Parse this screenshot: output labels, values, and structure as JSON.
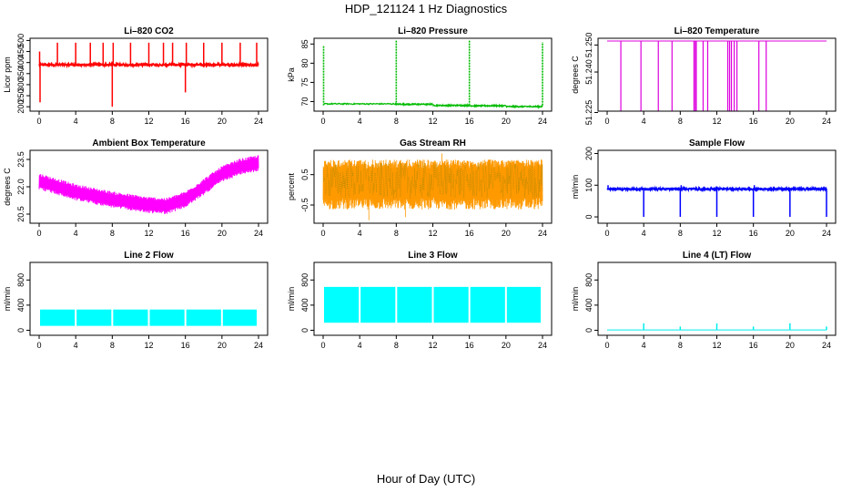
{
  "title": "HDP_121124  1 Hz Diagnostics",
  "xlabel": "Hour of Day (UTC)",
  "chart_data": [
    {
      "type": "line",
      "title": "Li–820 CO2",
      "ylabel": "Licor ppm",
      "color": "#ff0000",
      "series_kind": "spiky",
      "xlim": [
        0,
        24
      ],
      "xticks": [
        "0",
        "4",
        "8",
        "12",
        "16",
        "20",
        "24"
      ],
      "ylim": [
        180,
        510
      ],
      "yticks": [
        "200",
        "250",
        "300",
        "350",
        "400",
        "450",
        "500"
      ],
      "baseline": 390,
      "noise": 10,
      "spikes": [
        {
          "x": 0.05,
          "y": 450
        },
        {
          "x": 0.1,
          "y": 220
        },
        {
          "x": 2.0,
          "y": 490
        },
        {
          "x": 4.0,
          "y": 490
        },
        {
          "x": 5.6,
          "y": 490
        },
        {
          "x": 7.0,
          "y": 490
        },
        {
          "x": 8.0,
          "y": 200
        },
        {
          "x": 8.1,
          "y": 490
        },
        {
          "x": 10.0,
          "y": 490
        },
        {
          "x": 12.0,
          "y": 490
        },
        {
          "x": 13.6,
          "y": 490
        },
        {
          "x": 14.6,
          "y": 490
        },
        {
          "x": 16.0,
          "y": 265
        },
        {
          "x": 16.1,
          "y": 490
        },
        {
          "x": 18.0,
          "y": 490
        },
        {
          "x": 20.0,
          "y": 490
        },
        {
          "x": 22.0,
          "y": 490
        },
        {
          "x": 23.8,
          "y": 490
        }
      ]
    },
    {
      "type": "line",
      "title": "Li–820 Pressure",
      "ylabel": "kPa",
      "color": "#00bb00",
      "series_kind": "stepped",
      "xlim": [
        0,
        24
      ],
      "xticks": [
        "0",
        "4",
        "8",
        "12",
        "16",
        "20",
        "24"
      ],
      "ylim": [
        67.5,
        86.5
      ],
      "yticks": [
        "70",
        "75",
        "80",
        "85"
      ],
      "steps": [
        {
          "x0": 0.1,
          "x1": 8.0,
          "y": 69.4
        },
        {
          "x0": 8.0,
          "x1": 12.0,
          "y": 69.3
        },
        {
          "x0": 12.0,
          "x1": 16.0,
          "y": 69.0
        },
        {
          "x0": 16.0,
          "x1": 20.0,
          "y": 68.9
        },
        {
          "x0": 20.0,
          "x1": 24.0,
          "y": 68.7
        }
      ],
      "spikes": [
        {
          "x": 0.05,
          "y": 84.5
        },
        {
          "x": 8.0,
          "y": 86.0
        },
        {
          "x": 16.0,
          "y": 86.0
        },
        {
          "x": 24.0,
          "y": 85.5
        }
      ]
    },
    {
      "type": "line",
      "title": "Li–820 Temperature",
      "ylabel": "degrees C",
      "color": "#dd00dd",
      "series_kind": "dropouts",
      "xlim": [
        0,
        24
      ],
      "xticks": [
        "0",
        "4",
        "8",
        "12",
        "16",
        "20",
        "24"
      ],
      "ylim": [
        51.2255,
        51.2525
      ],
      "yticks": [
        "51.225",
        "51.240",
        "51.250"
      ],
      "baseline": 51.2515,
      "drops": [
        1.5,
        3.7,
        5.6,
        7.1,
        9.5,
        9.65,
        9.75,
        10.5,
        11.0,
        13.2,
        13.4,
        13.6,
        13.9,
        14.2,
        16.6,
        17.4
      ]
    },
    {
      "type": "line",
      "title": "Ambient Box Temperature",
      "ylabel": "degrees C",
      "color": "#ff00ff",
      "series_kind": "band",
      "xlim": [
        0,
        24
      ],
      "xticks": [
        "0",
        "4",
        "8",
        "12",
        "16",
        "20",
        "24"
      ],
      "ylim": [
        20.0,
        24.0
      ],
      "yticks": [
        "20.5",
        "22.0",
        "23.5"
      ],
      "center": [
        {
          "x": 0,
          "y": 22.3
        },
        {
          "x": 2,
          "y": 22.0
        },
        {
          "x": 4,
          "y": 21.7
        },
        {
          "x": 6,
          "y": 21.5
        },
        {
          "x": 8,
          "y": 21.3
        },
        {
          "x": 10,
          "y": 21.15
        },
        {
          "x": 12,
          "y": 21.0
        },
        {
          "x": 14,
          "y": 20.95
        },
        {
          "x": 16,
          "y": 21.3
        },
        {
          "x": 18,
          "y": 22.0
        },
        {
          "x": 20,
          "y": 22.7
        },
        {
          "x": 22,
          "y": 23.1
        },
        {
          "x": 24,
          "y": 23.3
        }
      ],
      "halfwidth": 0.45
    },
    {
      "type": "line",
      "title": "Gas Stream RH",
      "ylabel": "percent",
      "color": "#ff9900",
      "color2": "#aa8800",
      "series_kind": "noise",
      "xlim": [
        0,
        24
      ],
      "xticks": [
        "0",
        "4",
        "8",
        "12",
        "16",
        "20",
        "24"
      ],
      "ylim": [
        -1.1,
        1.3
      ],
      "yticks": [
        "-0.5",
        "0.5"
      ],
      "baseline": 0.3,
      "upper": 1.0,
      "lower": -0.65,
      "outliers": [
        -1.0,
        -0.9,
        1.2
      ]
    },
    {
      "type": "line",
      "title": "Sample Flow",
      "ylabel": "ml/min",
      "color": "#0000ff",
      "series_kind": "spiky",
      "xlim": [
        0,
        24
      ],
      "xticks": [
        "0",
        "4",
        "8",
        "12",
        "16",
        "20",
        "24"
      ],
      "ylim": [
        -20,
        210
      ],
      "yticks": [
        "0",
        "100",
        "200"
      ],
      "baseline": 88,
      "noise": 5,
      "spikes": [
        {
          "x": 0.1,
          "y": 100
        },
        {
          "x": 4.0,
          "y": 0
        },
        {
          "x": 8.0,
          "y": 0
        },
        {
          "x": 8.1,
          "y": 100
        },
        {
          "x": 12.0,
          "y": 0
        },
        {
          "x": 16.0,
          "y": 0
        },
        {
          "x": 16.1,
          "y": 100
        },
        {
          "x": 20.0,
          "y": 0
        },
        {
          "x": 24.0,
          "y": 0
        }
      ]
    },
    {
      "type": "area",
      "title": "Line 2 Flow",
      "ylabel": "ml/min",
      "color": "#00ffff",
      "series_kind": "block",
      "xlim": [
        0,
        24
      ],
      "xticks": [
        "0",
        "4",
        "8",
        "12",
        "16",
        "20",
        "24"
      ],
      "ylim": [
        -80,
        1080
      ],
      "yticks": [
        "0",
        "400",
        "800"
      ],
      "low": 70,
      "high": 330,
      "gaps": [
        4.0,
        8.0,
        12.0,
        16.0,
        20.0
      ]
    },
    {
      "type": "area",
      "title": "Line 3 Flow",
      "ylabel": "ml/min",
      "color": "#00ffff",
      "series_kind": "block",
      "xlim": [
        0,
        24
      ],
      "xticks": [
        "0",
        "4",
        "8",
        "12",
        "16",
        "20",
        "24"
      ],
      "ylim": [
        -80,
        1080
      ],
      "yticks": [
        "0",
        "400",
        "800"
      ],
      "low": 120,
      "high": 690,
      "gaps": [
        4.0,
        8.0,
        12.0,
        16.0,
        20.0
      ]
    },
    {
      "type": "line",
      "title": "Line 4 (LT) Flow",
      "ylabel": "ml/min",
      "color": "#00eeee",
      "series_kind": "flatspike",
      "xlim": [
        0,
        24
      ],
      "xticks": [
        "0",
        "4",
        "8",
        "12",
        "16",
        "20",
        "24"
      ],
      "ylim": [
        -80,
        1080
      ],
      "yticks": [
        "0",
        "400",
        "800"
      ],
      "baseline": 5,
      "spikes": [
        {
          "x": 4.0,
          "y": 110
        },
        {
          "x": 8.0,
          "y": 60
        },
        {
          "x": 12.0,
          "y": 110
        },
        {
          "x": 16.0,
          "y": 60
        },
        {
          "x": 20.0,
          "y": 110
        },
        {
          "x": 24.0,
          "y": 60
        }
      ]
    }
  ]
}
